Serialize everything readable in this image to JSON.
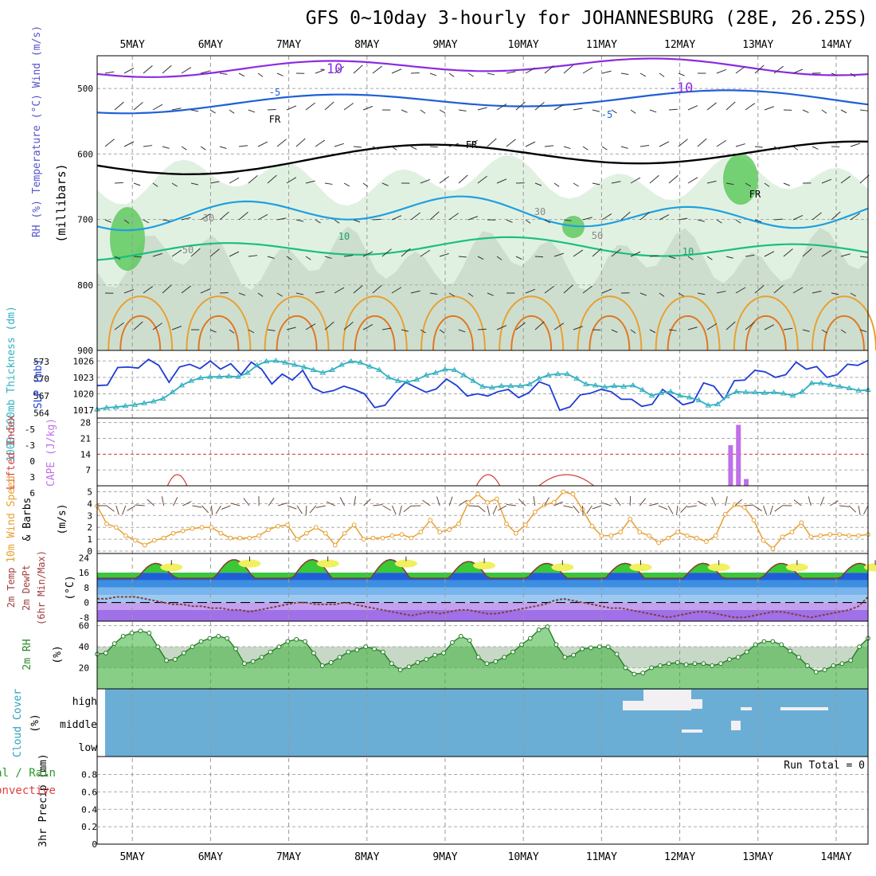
{
  "title": "GFS 0~10day 3-hourly for JOHANNESBURG (28E, 26.25S)",
  "chart_data": {
    "type": "meteogram",
    "dates": [
      "5MAY",
      "6MAY",
      "7MAY",
      "8MAY",
      "9MAY",
      "10MAY",
      "11MAY",
      "12MAY",
      "13MAY",
      "14MAY"
    ],
    "panels": [
      {
        "id": "upper_air",
        "axis_title": [
          "RH (%)",
          "Temperature (°C)",
          "Wind (m/s)"
        ],
        "ylabel": "(millibars)",
        "yticks": [
          500,
          600,
          700,
          800,
          900
        ],
        "ylim": [
          450,
          900
        ],
        "contour_labels": [
          "-10",
          "-5",
          "FR",
          "10",
          "30",
          "50"
        ],
        "colors": {
          "temperature_cold": "#8a2be2",
          "temperature_cool": "#1f5fd6",
          "temperature_zero": "#000000",
          "temperature_mild": "#1ea0e0",
          "temperature_warm": "#18c080",
          "temperature_hot": "#e8a030",
          "rh_fill": "#a8d8a8"
        }
      },
      {
        "id": "slp_thickness",
        "axis_title_left": "1000~500mb Thickness (dm)",
        "axis_title_right": "SLP (mb)",
        "yticks_thickness": [
          564,
          567,
          570,
          573
        ],
        "yticks_slp": [
          1017,
          1020,
          1023,
          1026
        ],
        "series": [
          {
            "name": "SLP (mb)",
            "color": "#1e3cd6",
            "values": [
              1021.5,
              1021.6,
              1024.8,
              1024.9,
              1024.7,
              1026.3,
              1025.2,
              1022.1,
              1024.9,
              1025.4,
              1024.6,
              1026.0,
              1024.5,
              1025.5,
              1023.5,
              1025.8,
              1024.5,
              1021.8,
              1023.6,
              1022.5,
              1024.3,
              1021.1,
              1020.2,
              1020.6,
              1021.4,
              1020.8,
              1020.0,
              1017.5,
              1017.9,
              1020.2,
              1022.1,
              1021.2,
              1020.3,
              1020.9,
              1022.7,
              1021.5,
              1019.6,
              1020.0,
              1019.6,
              1020.4,
              1020.8,
              1019.3,
              1020.2,
              1022.2,
              1021.5,
              1017.0,
              1017.6,
              1019.8,
              1020.1,
              1020.8,
              1020.4,
              1019.0,
              1019.0,
              1017.7,
              1018.1,
              1020.8,
              1019.5,
              1018.0,
              1018.5,
              1022.0,
              1021.4,
              1019.0,
              1022.4,
              1022.5,
              1024.3,
              1024.0,
              1023.0,
              1023.5,
              1025.8,
              1024.5,
              1025.0,
              1023.0,
              1023.5,
              1025.4,
              1025.2,
              1026.1
            ]
          },
          {
            "name": "1000~500mb Thickness (dm)",
            "color": "#30b0c0",
            "values": [
              564.6,
              564.9,
              565.0,
              565.2,
              565.4,
              565.7,
              566.0,
              566.5,
              567.6,
              568.8,
              569.6,
              570.1,
              570.3,
              570.3,
              570.4,
              570.3,
              571.0,
              572.3,
              573.0,
              573.1,
              572.8,
              572.4,
              572.0,
              571.5,
              571.0,
              571.5,
              572.4,
              573.0,
              572.8,
              572.1,
              571.5,
              570.2,
              569.6,
              569.4,
              569.8,
              570.6,
              571.0,
              571.6,
              571.5,
              570.6,
              569.6,
              568.6,
              568.4,
              568.7,
              568.7,
              568.7,
              569.0,
              570.0,
              570.6,
              570.8,
              570.8,
              570.0,
              569.0,
              568.8,
              568.5,
              568.7,
              568.6,
              568.8,
              568.0,
              567.0,
              567.5,
              567.7,
              567.0,
              566.7,
              566.2,
              565.3,
              565.5,
              566.9,
              567.7,
              567.6,
              567.6,
              567.5,
              567.6,
              567.4,
              567.0,
              567.7,
              569.2,
              569.2,
              568.9,
              568.6,
              568.3,
              567.9,
              568.0
            ]
          }
        ]
      },
      {
        "id": "instability",
        "axis_title_left": "Lifted Index",
        "axis_title_right": "CAPE (J/kg)",
        "yticks_li": [
          "-5",
          "-3",
          "0",
          "3",
          "6"
        ],
        "yticks_cape": [
          7,
          14,
          21,
          28
        ],
        "li_zero_line_color": "#e04040",
        "cape_color": "#c070e8",
        "li_color": "#d04040",
        "cape_bars": [
          {
            "day": 12.65,
            "value": 18
          },
          {
            "day": 12.75,
            "value": 27
          },
          {
            "day": 12.85,
            "value": 3
          }
        ]
      },
      {
        "id": "wind10m",
        "axis_title_left": "10m Wind Speed",
        "axis_title_right": "& Barbs",
        "ylabel": "(m/s)",
        "yticks": [
          0,
          1,
          2,
          3,
          4,
          5
        ],
        "ylim": [
          0,
          5.3
        ],
        "color": "#e8a030",
        "values": [
          3.8,
          2.3,
          2.0,
          1.3,
          0.9,
          0.5,
          0.9,
          1.1,
          1.5,
          1.7,
          1.9,
          2.0,
          2.0,
          1.5,
          1.1,
          1.1,
          1.1,
          1.3,
          1.8,
          2.1,
          2.2,
          1.0,
          1.5,
          2.0,
          1.5,
          0.5,
          1.5,
          2.2,
          1.0,
          1.1,
          1.1,
          1.3,
          1.4,
          1.1,
          1.6,
          2.6,
          1.6,
          1.8,
          2.3,
          4.1,
          4.8,
          4.1,
          4.4,
          2.3,
          1.5,
          2.2,
          3.3,
          3.9,
          4.1,
          5.0,
          4.8,
          3.5,
          2.1,
          1.3,
          1.3,
          1.6,
          2.7,
          1.6,
          1.3,
          0.7,
          1.1,
          1.6,
          1.3,
          1.1,
          0.8,
          1.3,
          3.1,
          3.9,
          3.7,
          2.6,
          0.9,
          0.2,
          1.2,
          1.6,
          2.4,
          1.2,
          1.3,
          1.4,
          1.4,
          1.3,
          1.3,
          1.4
        ]
      },
      {
        "id": "temperature2m",
        "axis_title": [
          "2m Temp",
          "2m DewPt",
          "(6hr Min/Max)"
        ],
        "ylabel": "(°C)",
        "yticks": [
          "-8",
          "0",
          "8",
          "16",
          "24"
        ],
        "ylim": [
          -10,
          25
        ],
        "temp_fill_color": "#38c838",
        "temp_peak_color": "#f0f060",
        "dewpoint_color": "#804040",
        "band_colors": [
          "#1f5fd6",
          "#3c8ee0",
          "#78b4ee",
          "#9ec8f0",
          "#c4a0f0",
          "#a070e8"
        ],
        "temp_max": [
          21,
          23,
          23,
          23,
          22,
          21,
          21,
          21,
          21,
          21
        ],
        "temp_min": [
          12,
          13,
          13,
          13,
          13,
          13,
          13,
          13,
          13,
          13
        ],
        "dewpoint": [
          2,
          2,
          3,
          3,
          3,
          2,
          1,
          0,
          -1,
          -1,
          -2,
          -2,
          -3,
          -3,
          -4,
          -4,
          -5,
          -4,
          -3,
          -2,
          -1,
          0,
          0,
          -1,
          -1,
          -1,
          0,
          -1,
          -2,
          -3,
          -4,
          -5,
          -6,
          -7,
          -6,
          -5,
          -6,
          -5,
          -4,
          -4,
          -5,
          -6,
          -6,
          -5,
          -4,
          -3,
          -2,
          -1,
          1,
          2,
          1,
          0,
          -1,
          -2,
          -3,
          -3,
          -4,
          -5,
          -6,
          -7,
          -8,
          -7,
          -6,
          -5,
          -5,
          -6,
          -7,
          -8,
          -8,
          -7,
          -6,
          -5,
          -5,
          -6,
          -7,
          -8,
          -7,
          -6,
          -5,
          -4,
          -2,
          3
        ]
      },
      {
        "id": "rh2m",
        "axis_title": "2m RH",
        "ylabel": "(%)",
        "yticks": [
          20,
          40,
          60
        ],
        "ylim": [
          0,
          62
        ],
        "color": "#1e7a1e",
        "fill_color": "#38b038",
        "values": [
          33,
          34,
          43,
          50,
          53,
          55,
          53,
          40,
          27,
          28,
          34,
          40,
          45,
          48,
          50,
          48,
          38,
          24,
          26,
          30,
          35,
          40,
          45,
          47,
          45,
          34,
          22,
          25,
          30,
          35,
          37,
          40,
          38,
          35,
          24,
          18,
          21,
          25,
          28,
          32,
          34,
          44,
          50,
          46,
          30,
          24,
          26,
          30,
          35,
          42,
          48,
          56,
          59,
          42,
          30,
          32,
          38,
          39,
          40,
          40,
          33,
          20,
          14,
          15,
          20,
          22,
          24,
          25,
          23,
          24,
          24,
          22,
          24,
          28,
          30,
          35,
          42,
          45,
          45,
          42,
          36,
          30,
          22,
          16,
          18,
          22,
          24,
          27,
          40,
          48
        ]
      },
      {
        "id": "cloud_cover",
        "axis_title": "Cloud Cover",
        "ylabel": "(%)",
        "ytick_labels": [
          "high",
          "middle",
          "low"
        ],
        "background_color": "#6aaed6",
        "cloud_color": "#f2f0f2"
      },
      {
        "id": "precip",
        "axis_title_left": "tal / Rain",
        "axis_title_right": "Convective",
        "ylabel": "3hr Precip (mm)",
        "yticks": [
          "0",
          "0.2",
          "0.4",
          "0.6",
          "0.8"
        ],
        "ylim": [
          0,
          0.96
        ],
        "run_total": "Run Total = 0"
      }
    ]
  }
}
